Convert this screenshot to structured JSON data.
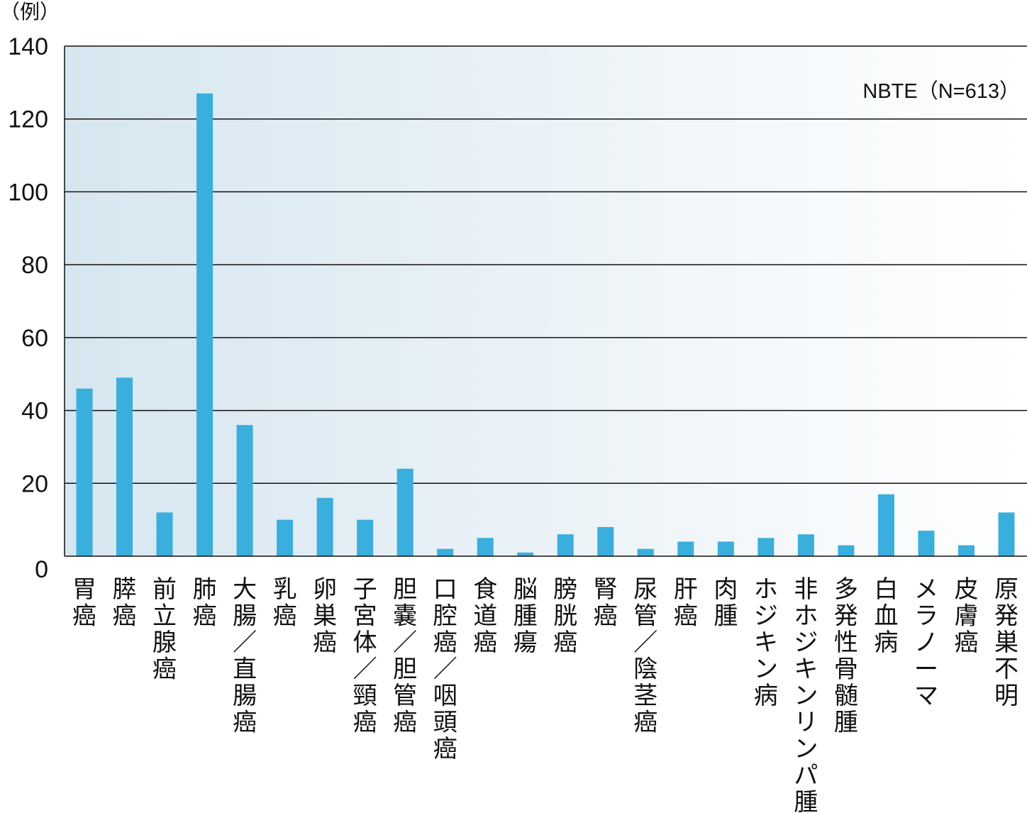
{
  "chart_data": {
    "type": "bar",
    "unit_label": "（例）",
    "annotation": "NBTE（N=613）",
    "ylim": [
      0,
      140
    ],
    "yticks": [
      0,
      20,
      40,
      60,
      80,
      100,
      120,
      140
    ],
    "grid": true,
    "bar_color": "#3aaedc",
    "background_gradient": [
      "#d6e6f0",
      "#ffffff"
    ],
    "categories": [
      "胃癌",
      "膵癌",
      "前立腺癌",
      "肺癌",
      "大腸／直腸癌",
      "乳癌",
      "卵巣癌",
      "子宮体／頸癌",
      "胆嚢／胆管癌",
      "口腔癌／咽頭癌",
      "食道癌",
      "脳腫瘍",
      "膀胱癌",
      "腎癌",
      "尿管／陰茎癌",
      "肝癌",
      "肉腫",
      "ホジキン病",
      "非ホジキンリンパ腫",
      "多発性骨髄腫",
      "白血病",
      "メラノーマ",
      "皮膚癌",
      "原発巣不明"
    ],
    "values": [
      46,
      49,
      12,
      127,
      36,
      10,
      16,
      10,
      24,
      2,
      5,
      1,
      6,
      8,
      2,
      4,
      4,
      5,
      6,
      3,
      17,
      7,
      3,
      12
    ]
  }
}
